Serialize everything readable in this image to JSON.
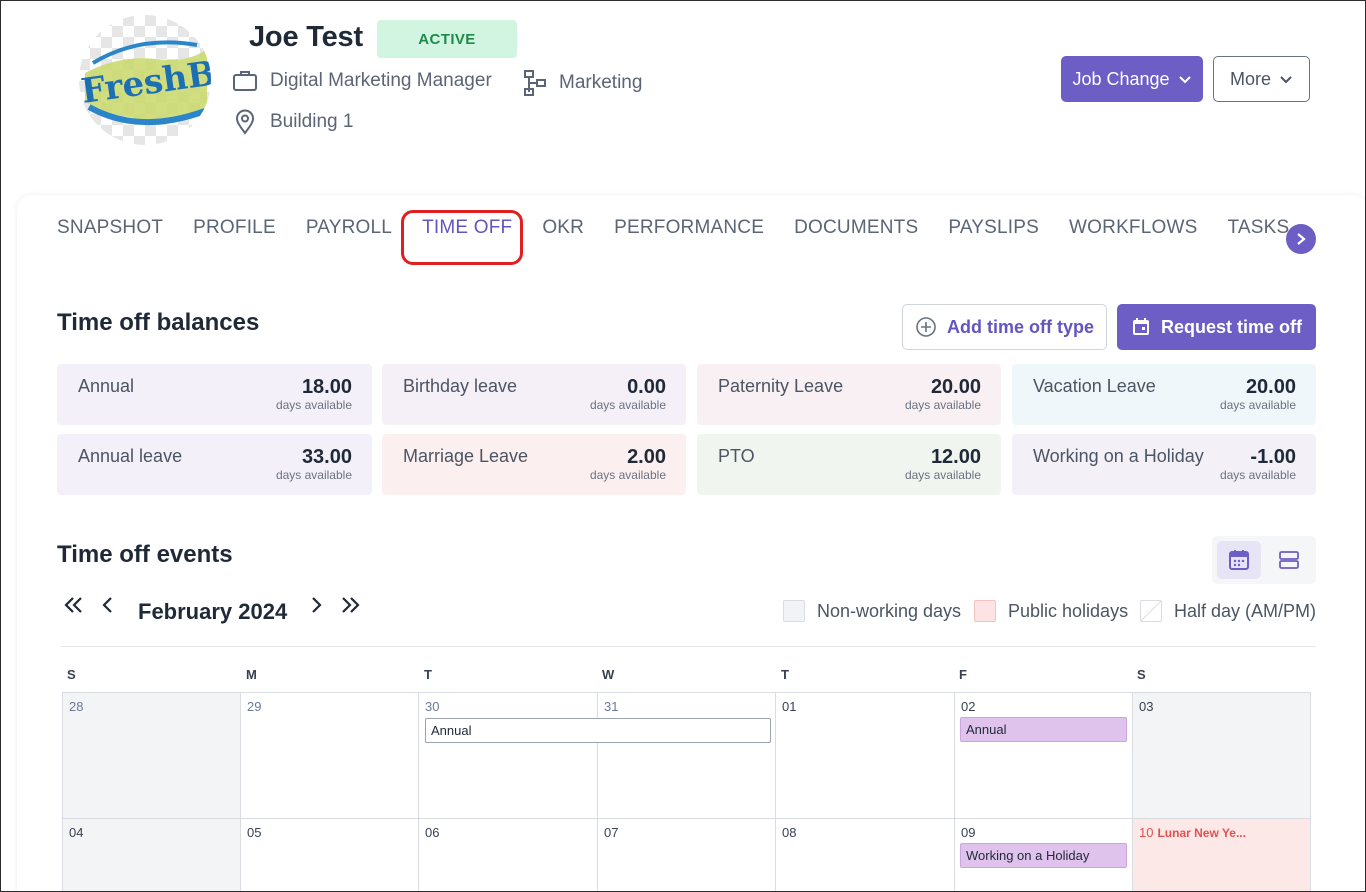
{
  "employee": {
    "name": "Joe Test",
    "status": "ACTIVE",
    "job_title": "Digital Marketing Manager",
    "department": "Marketing",
    "location": "Building 1",
    "avatar_text": "FreshBo"
  },
  "header_buttons": {
    "job_change": "Job Change",
    "more": "More"
  },
  "tabs": [
    {
      "label": "SNAPSHOT"
    },
    {
      "label": "PROFILE"
    },
    {
      "label": "PAYROLL"
    },
    {
      "label": "TIME OFF",
      "active": true
    },
    {
      "label": "OKR"
    },
    {
      "label": "PERFORMANCE"
    },
    {
      "label": "DOCUMENTS"
    },
    {
      "label": "PAYSLIPS"
    },
    {
      "label": "WORKFLOWS"
    },
    {
      "label": "TASKS"
    }
  ],
  "balances_section": {
    "title": "Time off balances",
    "add_type_label": "Add time off type",
    "request_label": "Request time off",
    "unit": "days available",
    "items": [
      {
        "label": "Annual",
        "value": "18.00",
        "color": "#f3f0f9"
      },
      {
        "label": "Birthday leave",
        "value": "0.00",
        "color": "#f5f0f8"
      },
      {
        "label": "Paternity Leave",
        "value": "20.00",
        "color": "#f9f0f3"
      },
      {
        "label": "Vacation Leave",
        "value": "20.00",
        "color": "#f0f7fa"
      },
      {
        "label": "Annual leave",
        "value": "33.00",
        "color": "#f3f0f9"
      },
      {
        "label": "Marriage Leave",
        "value": "2.00",
        "color": "#fcefef"
      },
      {
        "label": "PTO",
        "value": "12.00",
        "color": "#f0f6ef"
      },
      {
        "label": "Working on a Holiday",
        "value": "-1.00",
        "color": "#f3f0f8"
      }
    ]
  },
  "events_section": {
    "title": "Time off events",
    "month_label": "February 2024",
    "legend": {
      "non_working": "Non-working days",
      "public_holidays": "Public holidays",
      "half_day": "Half day (AM/PM)"
    },
    "weekdays": [
      "S",
      "M",
      "T",
      "W",
      "T",
      "F",
      "S"
    ],
    "week1": [
      "28",
      "29",
      "30",
      "31",
      "01",
      "02",
      "03"
    ],
    "week2": [
      "04",
      "05",
      "06",
      "07",
      "08",
      "09",
      "10"
    ],
    "holiday_label": "Lunar New Ye...",
    "events": {
      "annual_span": "Annual",
      "annual_fri": "Annual",
      "working_holiday": "Working on a Holiday"
    }
  }
}
